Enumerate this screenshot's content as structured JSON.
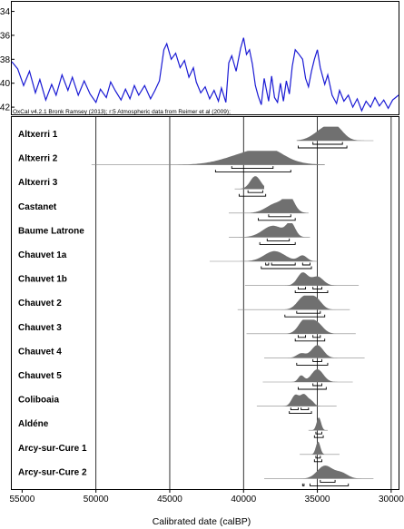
{
  "chart_data": {
    "type": "area",
    "x_axis": {
      "label": "Calibrated date (calBP)",
      "ticks": [
        55000,
        50000,
        45000,
        40000,
        35000,
        30000
      ],
      "range": [
        55700,
        29500
      ],
      "reversed": true
    },
    "atmospheric_panel": {
      "credit": "OxCal v4.2.1 Bronk Ramsey (2013); r:5 Atmospheric data from Reimer et al (2009);",
      "y_ticks": [
        "-34",
        "-36",
        "-38",
        "-40",
        "-42"
      ],
      "y_values": [
        -34,
        -36,
        -38,
        -40,
        -42
      ],
      "y_range": [
        -33.2,
        -42.6
      ],
      "line_color": "#1a1ad4",
      "series": [
        [
          55700,
          -38.2
        ],
        [
          55300,
          -38.8
        ],
        [
          54900,
          -40.2
        ],
        [
          54500,
          -39.0
        ],
        [
          54100,
          -40.8
        ],
        [
          53800,
          -39.7
        ],
        [
          53400,
          -41.4
        ],
        [
          53000,
          -40.1
        ],
        [
          52700,
          -41.0
        ],
        [
          52300,
          -39.3
        ],
        [
          51900,
          -40.6
        ],
        [
          51600,
          -39.5
        ],
        [
          51200,
          -41.0
        ],
        [
          50800,
          -39.8
        ],
        [
          50400,
          -40.9
        ],
        [
          50000,
          -41.6
        ],
        [
          49700,
          -40.5
        ],
        [
          49300,
          -41.2
        ],
        [
          49000,
          -39.9
        ],
        [
          48700,
          -40.6
        ],
        [
          48300,
          -41.4
        ],
        [
          48000,
          -40.5
        ],
        [
          47700,
          -41.3
        ],
        [
          47400,
          -40.2
        ],
        [
          47100,
          -41.0
        ],
        [
          46700,
          -40.2
        ],
        [
          46300,
          -41.3
        ],
        [
          46000,
          -40.6
        ],
        [
          45700,
          -39.8
        ],
        [
          45400,
          -37.2
        ],
        [
          45200,
          -36.7
        ],
        [
          44900,
          -38.0
        ],
        [
          44600,
          -37.5
        ],
        [
          44300,
          -38.7
        ],
        [
          44000,
          -38.1
        ],
        [
          43700,
          -39.5
        ],
        [
          43400,
          -38.7
        ],
        [
          43200,
          -39.9
        ],
        [
          42900,
          -40.8
        ],
        [
          42600,
          -40.3
        ],
        [
          42300,
          -41.3
        ],
        [
          42000,
          -40.6
        ],
        [
          41700,
          -41.5
        ],
        [
          41500,
          -40.4
        ],
        [
          41200,
          -41.6
        ],
        [
          41000,
          -38.3
        ],
        [
          40800,
          -37.7
        ],
        [
          40500,
          -39.0
        ],
        [
          40200,
          -37.1
        ],
        [
          40000,
          -36.2
        ],
        [
          39800,
          -37.6
        ],
        [
          39600,
          -37.2
        ],
        [
          39400,
          -38.4
        ],
        [
          39200,
          -40.2
        ],
        [
          39000,
          -41.1
        ],
        [
          38800,
          -41.8
        ],
        [
          38600,
          -39.6
        ],
        [
          38300,
          -41.5
        ],
        [
          38100,
          -39.4
        ],
        [
          37900,
          -41.2
        ],
        [
          37700,
          -41.6
        ],
        [
          37500,
          -40.0
        ],
        [
          37300,
          -41.5
        ],
        [
          37100,
          -39.8
        ],
        [
          36900,
          -40.9
        ],
        [
          36700,
          -38.6
        ],
        [
          36500,
          -37.2
        ],
        [
          36300,
          -37.5
        ],
        [
          36000,
          -38.0
        ],
        [
          35800,
          -39.6
        ],
        [
          35600,
          -40.3
        ],
        [
          35400,
          -39.0
        ],
        [
          35200,
          -38.0
        ],
        [
          35000,
          -37.2
        ],
        [
          34800,
          -38.7
        ],
        [
          34500,
          -40.1
        ],
        [
          34300,
          -39.3
        ],
        [
          34000,
          -41.0
        ],
        [
          33700,
          -41.7
        ],
        [
          33500,
          -40.6
        ],
        [
          33200,
          -41.5
        ],
        [
          32900,
          -41.0
        ],
        [
          32600,
          -42.0
        ],
        [
          32300,
          -41.3
        ],
        [
          32000,
          -42.3
        ],
        [
          31700,
          -41.5
        ],
        [
          31400,
          -42.0
        ],
        [
          31100,
          -41.2
        ],
        [
          30800,
          -41.9
        ],
        [
          30500,
          -41.4
        ],
        [
          30200,
          -42.1
        ],
        [
          29900,
          -41.4
        ],
        [
          29500,
          -41.0
        ]
      ]
    },
    "sites": [
      {
        "name": "Altxerri 1",
        "peaks": [
          [
            34400,
            1.0,
            750
          ],
          [
            33700,
            0.55,
            500
          ]
        ],
        "range": [
          31200,
          36400
        ],
        "bars_upper": [
          [
            35300,
            33300
          ]
        ],
        "bars_lower": [
          [
            36300,
            33000
          ]
        ]
      },
      {
        "name": "Altxerri 2",
        "peaks": [
          [
            39300,
            1.0,
            1700
          ],
          [
            38200,
            0.5,
            900
          ]
        ],
        "range": [
          34500,
          50300
        ],
        "bars_upper": [
          [
            40800,
            38000
          ]
        ],
        "bars_lower": [
          [
            41900,
            36800
          ]
        ]
      },
      {
        "name": "Altxerri 3",
        "peaks": [
          [
            39200,
            1.0,
            350
          ]
        ],
        "range": [
          38600,
          40600
        ],
        "bars_upper": [
          [
            39700,
            38700
          ]
        ],
        "bars_lower": [
          [
            40300,
            38500
          ]
        ]
      },
      {
        "name": "Castanet",
        "peaks": [
          [
            37700,
            0.8,
            700
          ],
          [
            36900,
            1.0,
            350
          ]
        ],
        "range": [
          35600,
          41000
        ],
        "bars_upper": [
          [
            38300,
            36800
          ]
        ],
        "bars_lower": [
          [
            39000,
            36500
          ]
        ]
      },
      {
        "name": "Baume Latrone",
        "peaks": [
          [
            38000,
            0.9,
            700
          ],
          [
            36800,
            1.0,
            300
          ]
        ],
        "range": [
          35500,
          41000
        ],
        "bars_upper": [
          [
            38400,
            36900
          ]
        ],
        "bars_lower": [
          [
            38900,
            36500
          ]
        ]
      },
      {
        "name": "Chauvet 1a",
        "peaks": [
          [
            37900,
            0.8,
            700
          ],
          [
            36000,
            0.45,
            300
          ]
        ],
        "range": [
          35000,
          42300
        ],
        "bars_upper": [
          [
            38500,
            38300
          ],
          [
            38100,
            36500
          ],
          [
            36000,
            35500
          ]
        ],
        "bars_lower": [
          [
            38800,
            35400
          ]
        ]
      },
      {
        "name": "Chauvet 1b",
        "peaks": [
          [
            36000,
            1.0,
            350
          ],
          [
            35000,
            0.7,
            400
          ]
        ],
        "range": [
          32200,
          39900
        ],
        "bars_upper": [
          [
            36300,
            35800
          ],
          [
            35300,
            34700
          ]
        ],
        "bars_lower": [
          [
            36500,
            34300
          ]
        ]
      },
      {
        "name": "Chauvet 2",
        "peaks": [
          [
            35900,
            1.0,
            450
          ],
          [
            35100,
            0.8,
            400
          ]
        ],
        "range": [
          32800,
          40400
        ],
        "bars_upper": [
          [
            36400,
            34800
          ]
        ],
        "bars_lower": [
          [
            37200,
            34500
          ]
        ]
      },
      {
        "name": "Chauvet 3",
        "peaks": [
          [
            35900,
            1.0,
            400
          ],
          [
            35100,
            0.9,
            450
          ]
        ],
        "range": [
          32400,
          39800
        ],
        "bars_upper": [
          [
            36300,
            35800
          ],
          [
            35300,
            34800
          ]
        ],
        "bars_lower": [
          [
            36500,
            34500
          ]
        ]
      },
      {
        "name": "Chauvet 4",
        "peaks": [
          [
            36100,
            0.35,
            300
          ],
          [
            35000,
            1.0,
            400
          ]
        ],
        "range": [
          31800,
          38600
        ],
        "bars_upper": [
          [
            35300,
            34700
          ]
        ],
        "bars_lower": [
          [
            36400,
            34300
          ]
        ]
      },
      {
        "name": "Chauvet 5",
        "peaks": [
          [
            36100,
            0.5,
            200
          ],
          [
            35000,
            1.0,
            400
          ]
        ],
        "range": [
          32600,
          38700
        ],
        "bars_upper": [
          [
            35300,
            34700
          ]
        ],
        "bars_lower": [
          [
            36300,
            34400
          ]
        ]
      },
      {
        "name": "Coliboaia",
        "peaks": [
          [
            36500,
            0.85,
            250
          ],
          [
            35900,
            0.9,
            250
          ],
          [
            35400,
            0.35,
            200
          ]
        ],
        "range": [
          33700,
          39100
        ],
        "bars_upper": [
          [
            36800,
            36300
          ],
          [
            36100,
            35600
          ]
        ],
        "bars_lower": [
          [
            36900,
            35400
          ]
        ]
      },
      {
        "name": "Aldéne",
        "peaks": [
          [
            34900,
            1.0,
            150
          ]
        ],
        "range": [
          34300,
          35600
        ],
        "bars_upper": [
          [
            35100,
            34700
          ]
        ],
        "bars_lower": [
          [
            35200,
            34600
          ]
        ]
      },
      {
        "name": "Arcy-sur-Cure 1",
        "peaks": [
          [
            34950,
            1.0,
            150
          ]
        ],
        "range": [
          33500,
          36200
        ],
        "bars_upper": [
          [
            35100,
            34800
          ]
        ],
        "bars_lower": [
          [
            35200,
            34700
          ]
        ]
      },
      {
        "name": "Arcy-sur-Cure 2",
        "peaks": [
          [
            34500,
            1.0,
            500
          ],
          [
            33400,
            0.45,
            450
          ]
        ],
        "range": [
          31200,
          38600
        ],
        "bars_upper": [
          [
            34800,
            33800
          ]
        ],
        "bars_lower": [
          [
            36000,
            35900
          ],
          [
            35500,
            32900
          ]
        ]
      }
    ]
  }
}
